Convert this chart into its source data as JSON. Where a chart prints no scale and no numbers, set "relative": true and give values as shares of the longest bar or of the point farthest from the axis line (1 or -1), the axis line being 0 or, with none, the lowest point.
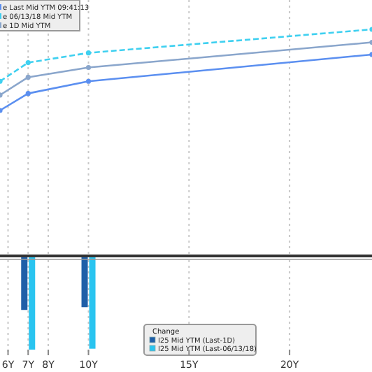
{
  "chart_data": [
    {
      "type": "line",
      "relative": true,
      "x": [
        5.6,
        7,
        10,
        24.1
      ],
      "xlim": [
        5.6,
        24.1
      ],
      "xticks": [
        {
          "value": 6,
          "label": null
        },
        {
          "value": 7,
          "label": null
        },
        {
          "value": 8,
          "label": null
        },
        {
          "value": 10,
          "label": null
        },
        {
          "value": 15,
          "label": null
        },
        {
          "value": 20,
          "label": null
        }
      ],
      "tick_labels": false,
      "grid": "x",
      "legend": "top left",
      "marker": "circle",
      "series": [
        {
          "name": "e Last Mid YTM 09:41:13",
          "color": "#5b8ff0",
          "values": [
            0,
            0.21,
            0.36,
            0.69
          ],
          "line_style": "solid"
        },
        {
          "name": "e 06/13/18 Mid YTM",
          "color": "#3fd0f0",
          "values": [
            0.36,
            0.59,
            0.71,
            1
          ],
          "line_style": "dashed"
        },
        {
          "name": "e 1D Mid YTM",
          "color": "#8aa6cc",
          "values": [
            0.19,
            0.41,
            0.53,
            0.84
          ],
          "line_style": "solid"
        }
      ]
    },
    {
      "type": "bar",
      "relative": true,
      "x": [
        7,
        10
      ],
      "xlim": [
        5.6,
        24.1
      ],
      "xticks": [
        {
          "value": 6,
          "label": "6Y"
        },
        {
          "value": 7,
          "label": "7Y"
        },
        {
          "value": 8,
          "label": "8Y"
        },
        {
          "value": 10,
          "label": "10Y"
        },
        {
          "value": 15,
          "label": "15Y"
        },
        {
          "value": 20,
          "label": "20Y"
        }
      ],
      "tick_labels": "x",
      "grid": "x",
      "legend": "bottom",
      "legend_title": "Change",
      "series": [
        {
          "name": "I25 Mid YTM (Last-1D)",
          "color": "#1f5fa8",
          "values": [
            -0.57,
            -0.54
          ]
        },
        {
          "name": "I25 Mid YTM (Last-06/13/18)",
          "color": "#29c4f0",
          "values": [
            -1,
            -0.99
          ]
        }
      ]
    }
  ]
}
